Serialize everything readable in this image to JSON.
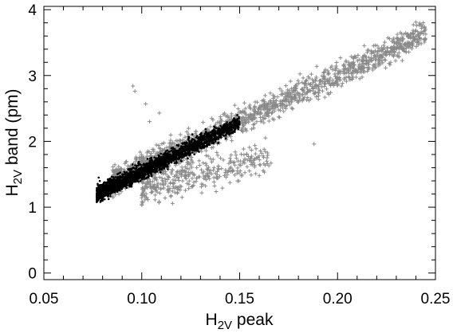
{
  "chart_data": {
    "type": "scatter",
    "xlabel": "H2V peak",
    "xlabel_parts": {
      "base": "H",
      "sub": "2V",
      "rest": " peak"
    },
    "ylabel": "H2V band (pm)",
    "ylabel_parts": {
      "base": "H",
      "sub": "2V",
      "rest": " band  (pm)"
    },
    "xlim": [
      0.05,
      0.25
    ],
    "ylim": [
      -0.1,
      4.05
    ],
    "xticks": [
      0.05,
      0.1,
      0.15,
      0.2,
      0.25
    ],
    "xtick_labels": [
      "0.05",
      "0.10",
      "0.15",
      "0.20",
      "0.25"
    ],
    "yticks": [
      0,
      1,
      2,
      3,
      4
    ],
    "ytick_labels": [
      "0",
      "1",
      "2",
      "3",
      "4"
    ],
    "grid": false,
    "legend": "none",
    "series": [
      {
        "marker": "plus",
        "color": "#8a8a8a",
        "band_main": {
          "x": [
            0.085,
            0.245
          ],
          "y_at_x0": 1.38,
          "slope": 14.2,
          "spread": 0.1,
          "count": 1700
        },
        "band_lower": {
          "x": [
            0.1,
            0.165
          ],
          "y_at_x0": 1.28,
          "slope": 7.5,
          "spread": 0.13,
          "count": 380
        },
        "points": [
          {
            "x": 0.0955,
            "y": 2.84
          },
          {
            "x": 0.0965,
            "y": 2.76
          },
          {
            "x": 0.102,
            "y": 2.57
          },
          {
            "x": 0.104,
            "y": 2.3
          },
          {
            "x": 0.109,
            "y": 2.43
          },
          {
            "x": 0.188,
            "y": 1.96
          },
          {
            "x": 0.242,
            "y": 3.57
          },
          {
            "x": 0.245,
            "y": 3.63
          },
          {
            "x": 0.233,
            "y": 3.52
          },
          {
            "x": 0.166,
            "y": 1.67
          },
          {
            "x": 0.16,
            "y": 1.48
          }
        ]
      },
      {
        "marker": "dot",
        "color": "#000000",
        "band_main": {
          "x": [
            0.077,
            0.15
          ],
          "y_at_x0": 1.2,
          "slope": 14.8,
          "spread": 0.06,
          "count": 2400
        },
        "points": [
          {
            "x": 0.078,
            "y": 1.45
          },
          {
            "x": 0.08,
            "y": 1.33
          },
          {
            "x": 0.079,
            "y": 1.25
          }
        ]
      }
    ]
  }
}
